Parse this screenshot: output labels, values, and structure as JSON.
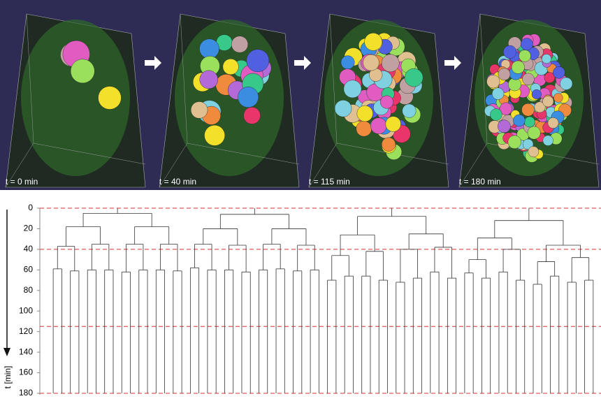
{
  "panels": [
    {
      "label": "t = 0 min"
    },
    {
      "label": "t = 40 min"
    },
    {
      "label": "t = 115 min"
    },
    {
      "label": "t = 180 min"
    }
  ],
  "chart_data": {
    "type": "dendrogram",
    "ylabel": "t [min]",
    "ylim": [
      0,
      180
    ],
    "yticks": [
      0,
      20,
      40,
      60,
      80,
      100,
      120,
      140,
      160,
      180
    ],
    "reference_lines": [
      0,
      40,
      115,
      180
    ],
    "reference_color": "#d93030",
    "line_color": "#333333",
    "trees": [
      [
        5,
        [
          18,
          [
            37,
            [
              59,
              [],
              []
            ],
            [
              61,
              [],
              []
            ]
          ],
          [
            35,
            [
              60,
              [],
              []
            ],
            [
              60,
              [],
              []
            ]
          ]
        ],
        [
          18,
          [
            35,
            [
              62,
              [],
              []
            ],
            [
              60,
              [],
              []
            ]
          ],
          [
            35,
            [
              60,
              [],
              []
            ],
            [
              61,
              [],
              []
            ]
          ]
        ]
      ],
      [
        6,
        [
          20,
          [
            35,
            [
              58,
              [],
              []
            ],
            [
              60,
              [],
              []
            ]
          ],
          [
            36,
            [
              60,
              [],
              []
            ],
            [
              62,
              [],
              []
            ]
          ]
        ],
        [
          20,
          [
            35,
            [
              60,
              [],
              []
            ],
            [
              59,
              [],
              []
            ]
          ],
          [
            36,
            [
              61,
              [],
              []
            ],
            [
              60,
              [],
              []
            ]
          ]
        ]
      ],
      [
        8,
        [
          26,
          [
            46,
            [
              70,
              [],
              []
            ],
            [
              66,
              [],
              []
            ]
          ],
          [
            42,
            [
              66,
              [],
              []
            ],
            [
              70,
              [],
              []
            ]
          ]
        ],
        [
          25,
          [
            40,
            [
              72,
              [],
              []
            ],
            [
              68,
              [],
              []
            ]
          ],
          [
            38,
            [
              62,
              [],
              []
            ],
            [
              68,
              [],
              []
            ]
          ]
        ]
      ],
      [
        12,
        [
          29,
          [
            50,
            [
              63,
              [],
              []
            ],
            [
              68,
              [],
              []
            ]
          ],
          [
            40,
            [
              62,
              [],
              []
            ],
            [
              70,
              [],
              []
            ]
          ]
        ],
        [
          36,
          [
            52,
            [
              74,
              [],
              []
            ],
            [
              66,
              [],
              []
            ]
          ],
          [
            48,
            [
              72,
              [],
              []
            ],
            [
              70,
              [],
              []
            ]
          ]
        ]
      ]
    ]
  }
}
